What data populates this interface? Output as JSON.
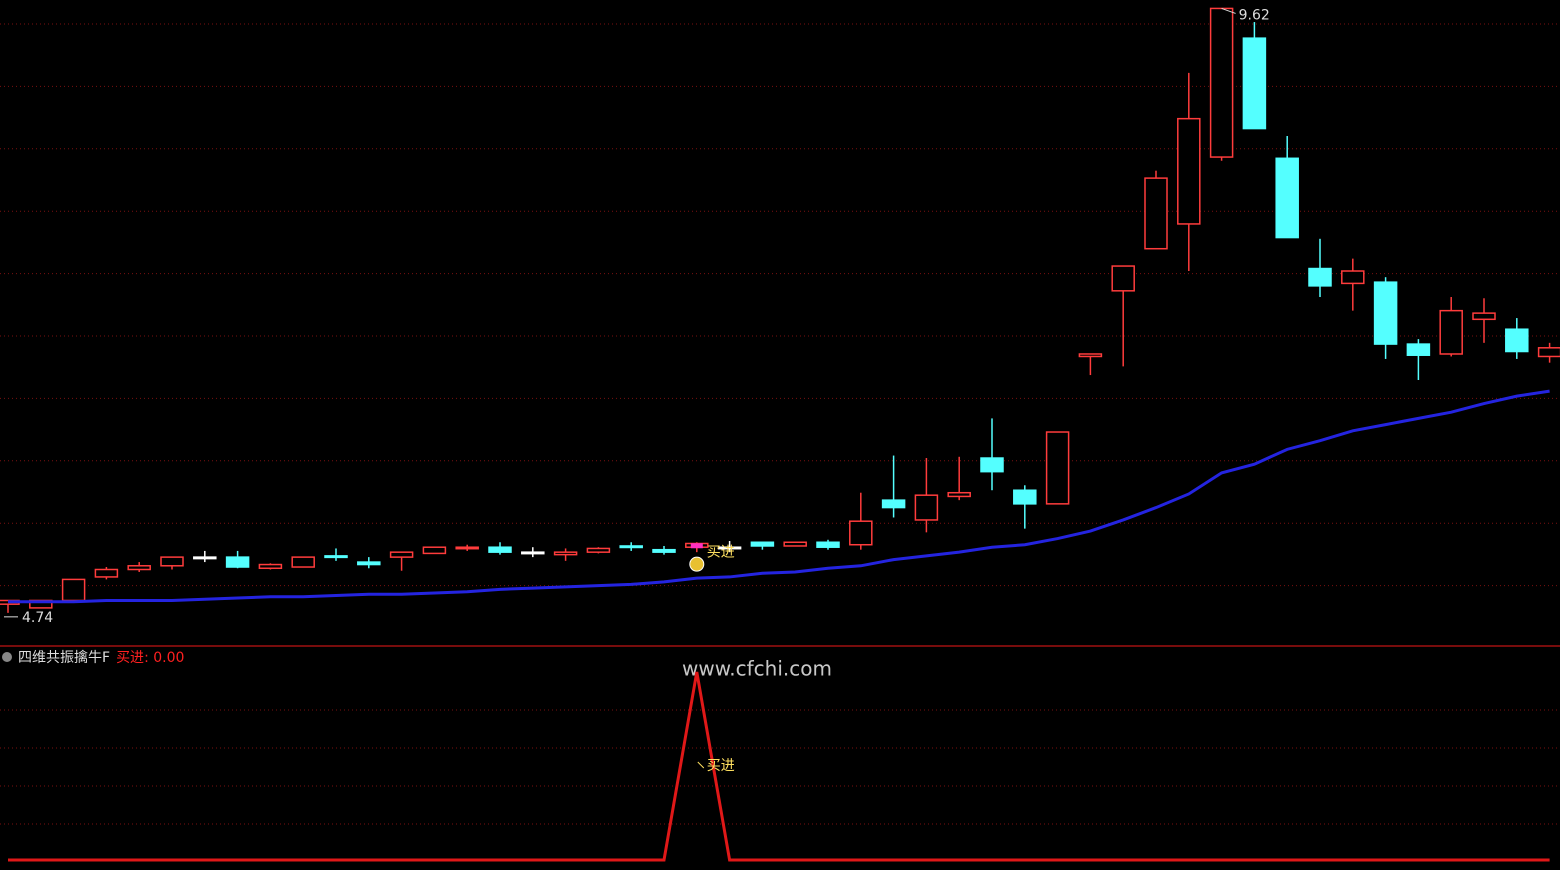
{
  "chart_data": [
    {
      "type": "candlestick",
      "up_color": "#ff3c3c",
      "down_color": "#54ffff",
      "flat_color": "#ffffff",
      "open": [
        4.81,
        4.78,
        4.84,
        5.03,
        5.09,
        5.12,
        5.19,
        5.19,
        5.1,
        5.11,
        5.2,
        5.15,
        5.19,
        5.22,
        5.26,
        5.27,
        5.23,
        5.21,
        5.23,
        5.28,
        5.25,
        5.27,
        5.27,
        5.31,
        5.28,
        5.31,
        5.29,
        5.65,
        5.49,
        5.68,
        5.99,
        5.73,
        5.62,
        6.81,
        7.34,
        7.68,
        7.88,
        8.42,
        9.38,
        8.41,
        7.52,
        7.4,
        7.41,
        6.91,
        6.83,
        7.11,
        7.03,
        6.81
      ],
      "high": [
        4.84,
        4.84,
        5.01,
        5.11,
        5.15,
        5.19,
        5.24,
        5.24,
        5.14,
        5.19,
        5.26,
        5.19,
        5.23,
        5.27,
        5.29,
        5.31,
        5.27,
        5.26,
        5.27,
        5.31,
        5.28,
        5.31,
        5.32,
        5.31,
        5.31,
        5.33,
        5.71,
        6.01,
        5.99,
        6.0,
        6.31,
        5.77,
        6.2,
        6.83,
        7.54,
        8.31,
        9.1,
        9.62,
        9.51,
        8.59,
        7.76,
        7.6,
        7.45,
        6.95,
        7.29,
        7.28,
        7.12,
        6.92
      ],
      "low": [
        4.74,
        4.78,
        4.84,
        5.01,
        5.07,
        5.09,
        5.15,
        5.1,
        5.09,
        5.11,
        5.16,
        5.1,
        5.08,
        5.22,
        5.24,
        5.21,
        5.19,
        5.16,
        5.22,
        5.24,
        5.21,
        5.23,
        5.23,
        5.25,
        5.28,
        5.25,
        5.25,
        5.51,
        5.39,
        5.65,
        5.73,
        5.42,
        5.62,
        6.66,
        6.73,
        7.68,
        7.5,
        8.39,
        8.65,
        7.77,
        7.29,
        7.18,
        6.79,
        6.62,
        6.81,
        6.92,
        6.79,
        6.76
      ],
      "close": [
        4.84,
        4.84,
        5.01,
        5.09,
        5.12,
        5.19,
        5.19,
        5.11,
        5.13,
        5.19,
        5.19,
        5.13,
        5.23,
        5.27,
        5.27,
        5.23,
        5.23,
        5.23,
        5.26,
        5.27,
        5.23,
        5.3,
        5.27,
        5.28,
        5.31,
        5.27,
        5.48,
        5.59,
        5.69,
        5.71,
        5.88,
        5.62,
        6.2,
        6.83,
        7.54,
        8.25,
        8.73,
        9.62,
        8.65,
        7.77,
        7.38,
        7.5,
        6.91,
        6.82,
        7.18,
        7.16,
        6.85,
        6.88
      ],
      "moving_average": {
        "color": "#2424e0",
        "values": [
          4.83,
          4.83,
          4.83,
          4.84,
          4.84,
          4.84,
          4.85,
          4.86,
          4.87,
          4.87,
          4.88,
          4.89,
          4.89,
          4.9,
          4.91,
          4.93,
          4.94,
          4.95,
          4.96,
          4.97,
          4.99,
          5.02,
          5.03,
          5.06,
          5.07,
          5.1,
          5.12,
          5.17,
          5.2,
          5.23,
          5.27,
          5.29,
          5.34,
          5.4,
          5.49,
          5.59,
          5.7,
          5.87,
          5.94,
          6.06,
          6.13,
          6.21,
          6.26,
          6.31,
          6.36,
          6.43,
          6.49,
          6.53
        ]
      },
      "ylim": [
        4.65,
        9.68
      ],
      "grid": true
    },
    {
      "type": "line",
      "title": "四维共振擒牛F",
      "color": "#e01818",
      "series": [
        {
          "name": "买进",
          "color": "#e01818",
          "values": [
            0,
            0,
            0,
            0,
            0,
            0,
            0,
            0,
            0,
            0,
            0,
            0,
            0,
            0,
            0,
            0,
            0,
            0,
            0,
            0,
            0,
            1,
            0,
            0,
            0,
            0,
            0,
            0,
            0,
            0,
            0,
            0,
            0,
            0,
            0,
            0,
            0,
            0,
            0,
            0,
            0,
            0,
            0,
            0,
            0,
            0,
            0,
            0
          ],
          "current_value": 0,
          "current_value_label": "0.00"
        }
      ],
      "signal_label": "买进",
      "watermark": "www.cfchi.com",
      "ylim": [
        0,
        1
      ],
      "grid": true
    }
  ]
}
